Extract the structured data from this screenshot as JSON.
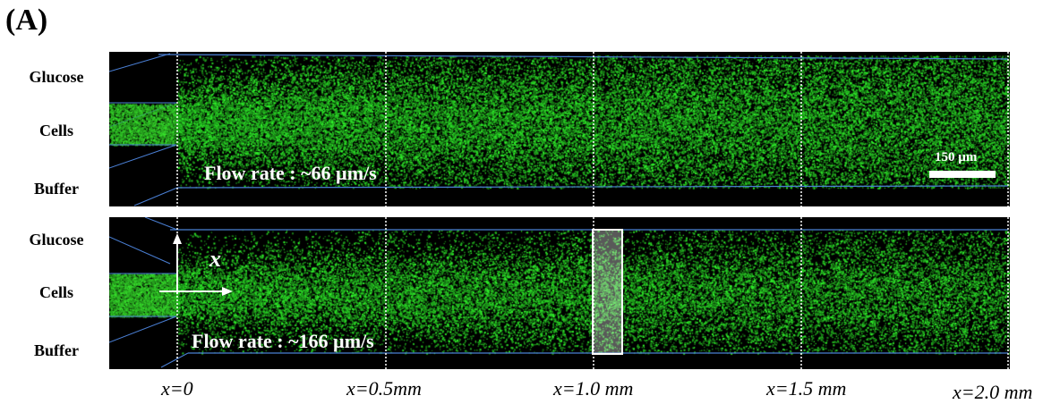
{
  "panel_label": "(A)",
  "row_labels": {
    "top": [
      "Glucose",
      "Cells",
      "Buffer"
    ],
    "bottom": [
      "Glucose",
      "Cells",
      "Buffer"
    ]
  },
  "top_panel": {
    "flow_rate_text": "Flow rate : ~66 µm/s",
    "scale_bar_text": "150 µm"
  },
  "bottom_panel": {
    "flow_rate_text": "Flow rate : ~166 µm/s",
    "axis_label": "x"
  },
  "positions": [
    "x=0",
    "x=0.5mm",
    "x=1.0 mm",
    "x=1.5 mm",
    "x=2.0 mm"
  ],
  "colors": {
    "cell_fluorescence": "#2ecc2e",
    "channel_wall": "#4a7fd4",
    "background": "#000000"
  }
}
